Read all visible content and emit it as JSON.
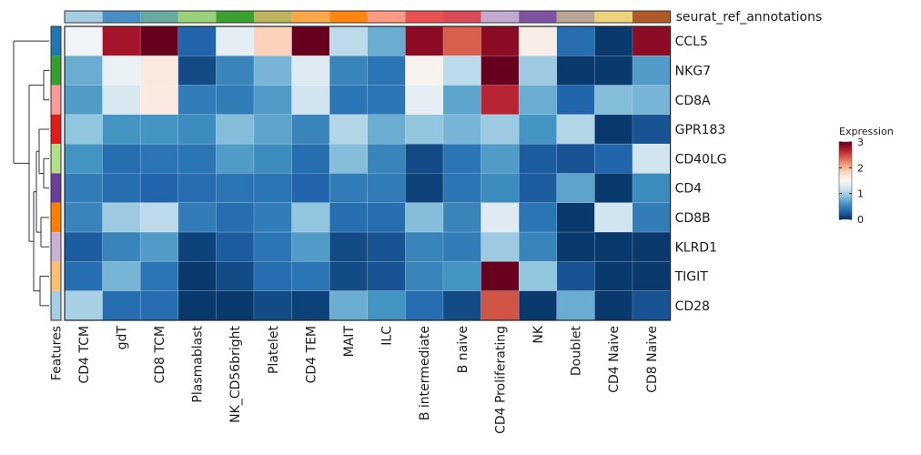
{
  "chart_data": {
    "type": "heatmap",
    "title": "",
    "xlabel": "",
    "ylabel": "",
    "columns": [
      "CD4 TCM",
      "gdT",
      "CD8 TCM",
      "Plasmablast",
      "NK_CD56bright",
      "Platelet",
      "CD4 TEM",
      "MAIT",
      "ILC",
      "B intermediate",
      "B naive",
      "CD4 Proliferating",
      "NK",
      "Doublet",
      "CD4 Naive",
      "CD8 Naive"
    ],
    "rows": [
      "CCL5",
      "NKG7",
      "CD8A",
      "GPR183",
      "CD40LG",
      "CD4",
      "CD8B",
      "KLRD1",
      "TIGIT",
      "CD28"
    ],
    "values": [
      [
        1.45,
        2.75,
        3.0,
        0.3,
        1.35,
        1.85,
        3.0,
        1.1,
        0.75,
        2.85,
        2.4,
        2.85,
        1.6,
        0.35,
        0.05,
        2.85
      ],
      [
        0.75,
        1.4,
        1.65,
        0.15,
        0.5,
        0.8,
        1.3,
        0.5,
        0.4,
        1.55,
        1.1,
        3.0,
        0.95,
        0.05,
        0.05,
        0.65
      ],
      [
        0.65,
        1.25,
        1.65,
        0.45,
        0.45,
        0.65,
        1.2,
        0.4,
        0.4,
        1.35,
        0.7,
        2.65,
        0.75,
        0.3,
        0.85,
        0.8
      ],
      [
        0.9,
        0.6,
        0.6,
        0.55,
        0.85,
        0.7,
        0.5,
        1.05,
        0.75,
        0.9,
        0.8,
        0.95,
        0.6,
        1.05,
        0.05,
        0.2
      ],
      [
        0.6,
        0.35,
        0.4,
        0.4,
        0.65,
        0.55,
        0.35,
        0.85,
        0.5,
        0.15,
        0.4,
        0.65,
        0.25,
        0.2,
        0.3,
        1.2
      ],
      [
        0.45,
        0.35,
        0.3,
        0.35,
        0.4,
        0.4,
        0.3,
        0.45,
        0.45,
        0.1,
        0.4,
        0.55,
        0.25,
        0.7,
        0.05,
        0.55
      ],
      [
        0.5,
        0.95,
        1.1,
        0.45,
        0.35,
        0.45,
        0.9,
        0.35,
        0.35,
        0.85,
        0.5,
        1.3,
        0.4,
        0.05,
        1.2,
        0.45
      ],
      [
        0.25,
        0.5,
        0.65,
        0.1,
        0.25,
        0.4,
        0.65,
        0.15,
        0.2,
        0.5,
        0.45,
        0.95,
        0.5,
        0.05,
        0.05,
        0.05
      ],
      [
        0.35,
        0.8,
        0.4,
        0.05,
        0.15,
        0.35,
        0.4,
        0.15,
        0.2,
        0.5,
        0.6,
        3.0,
        0.9,
        0.2,
        0.05,
        0.05
      ],
      [
        1.0,
        0.35,
        0.35,
        0.05,
        0.05,
        0.15,
        0.1,
        0.75,
        0.6,
        0.35,
        0.15,
        2.45,
        0.05,
        0.75,
        0.05,
        0.2
      ]
    ],
    "color_scale": {
      "name": "Expression",
      "range": [
        0,
        3
      ],
      "ticks": [
        0,
        1,
        2,
        3
      ],
      "palette": "RdBu (reversed)",
      "stops": [
        "#053061",
        "#2166ac",
        "#4393c3",
        "#92c5de",
        "#d1e5f0",
        "#f7f7f7",
        "#fddbc7",
        "#f4a582",
        "#d6604d",
        "#b2182b",
        "#67001f"
      ]
    },
    "column_annotation": {
      "name": "seurat_ref_annotations",
      "colors": [
        "#a6cee3",
        "#4a8fc4",
        "#67a89f",
        "#99d27b",
        "#3aa12f",
        "#bcb45e",
        "#fda848",
        "#fe8511",
        "#fd9a86",
        "#ec4f4f",
        "#dc4b5a",
        "#c4a9d1",
        "#7f52a2",
        "#b9a596",
        "#ecd47e",
        "#b15928"
      ]
    },
    "row_annotation": {
      "name": "Features",
      "colors": [
        "#1f78b4",
        "#33a02c",
        "#fb9a99",
        "#e31a1c",
        "#b2df8a",
        "#6a3d9a",
        "#ff7f00",
        "#cab2d6",
        "#fdbf6f",
        "#a6cee3"
      ]
    },
    "row_dendrogram": true,
    "legend_position": "right"
  }
}
